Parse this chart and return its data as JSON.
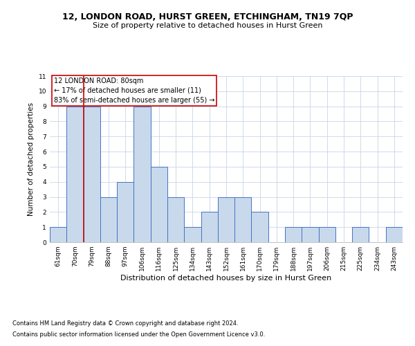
{
  "title1": "12, LONDON ROAD, HURST GREEN, ETCHINGHAM, TN19 7QP",
  "title2": "Size of property relative to detached houses in Hurst Green",
  "xlabel": "Distribution of detached houses by size in Hurst Green",
  "ylabel": "Number of detached properties",
  "categories": [
    "61sqm",
    "70sqm",
    "79sqm",
    "88sqm",
    "97sqm",
    "106sqm",
    "116sqm",
    "125sqm",
    "134sqm",
    "143sqm",
    "152sqm",
    "161sqm",
    "170sqm",
    "179sqm",
    "188sqm",
    "197sqm",
    "206sqm",
    "215sqm",
    "225sqm",
    "234sqm",
    "243sqm"
  ],
  "values": [
    1,
    9,
    9,
    3,
    4,
    9,
    5,
    3,
    1,
    2,
    3,
    3,
    2,
    0,
    1,
    1,
    1,
    0,
    1,
    0,
    1
  ],
  "bar_color": "#c8d9ec",
  "bar_edge_color": "#4472c4",
  "vline_color": "#cc0000",
  "vline_index": 1.5,
  "annotation_line1": "12 LONDON ROAD: 80sqm",
  "annotation_line2": "← 17% of detached houses are smaller (11)",
  "annotation_line3": "83% of semi-detached houses are larger (55) →",
  "annotation_box_color": "#cc0000",
  "ylim": [
    0,
    11
  ],
  "yticks": [
    0,
    1,
    2,
    3,
    4,
    5,
    6,
    7,
    8,
    9,
    10,
    11
  ],
  "footer1": "Contains HM Land Registry data © Crown copyright and database right 2024.",
  "footer2": "Contains public sector information licensed under the Open Government Licence v3.0.",
  "bg_color": "#ffffff",
  "grid_color": "#c8d4e8",
  "title1_fontsize": 9,
  "title2_fontsize": 8,
  "xlabel_fontsize": 8,
  "ylabel_fontsize": 7.5,
  "tick_fontsize": 6.5,
  "annotation_fontsize": 7,
  "footer_fontsize": 6
}
